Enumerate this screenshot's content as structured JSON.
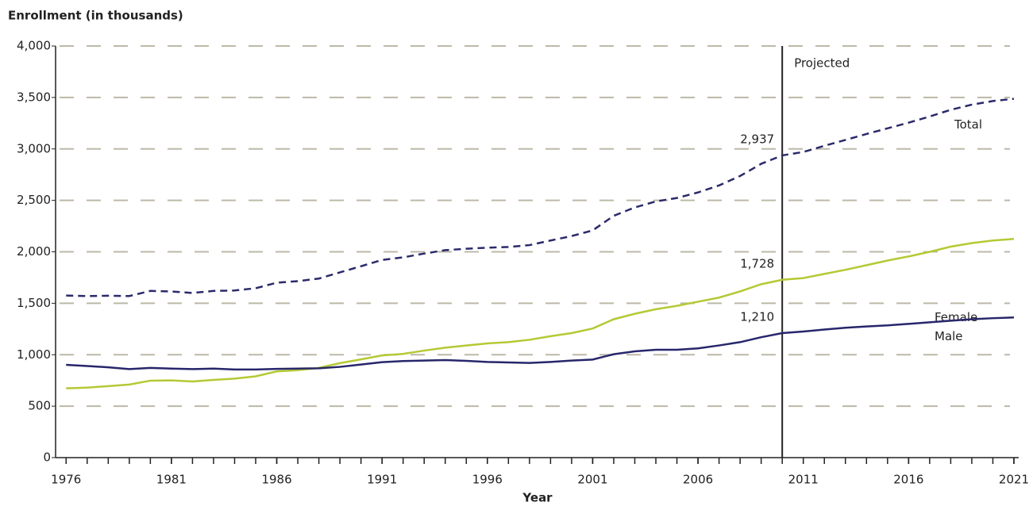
{
  "chart_data": {
    "type": "line",
    "y_axis_label": "Enrollment (in thousands)",
    "x_axis_label": "Year",
    "annotation": "Projected",
    "projection_start": 2010,
    "x": [
      1976,
      1977,
      1978,
      1979,
      1980,
      1981,
      1982,
      1983,
      1984,
      1985,
      1986,
      1987,
      1988,
      1989,
      1990,
      1991,
      1992,
      1993,
      1994,
      1995,
      1996,
      1997,
      1998,
      1999,
      2000,
      2001,
      2002,
      2003,
      2004,
      2005,
      2006,
      2007,
      2008,
      2009,
      2010,
      2011,
      2012,
      2013,
      2014,
      2015,
      2016,
      2017,
      2018,
      2019,
      2020,
      2021
    ],
    "series": [
      {
        "name": "Total",
        "color": "#2b2a6b",
        "dashed": true,
        "values": [
          1575,
          1570,
          1573,
          1570,
          1620,
          1615,
          1600,
          1620,
          1624,
          1646,
          1700,
          1715,
          1740,
          1800,
          1860,
          1921,
          1946,
          1983,
          2016,
          2030,
          2040,
          2047,
          2065,
          2110,
          2153,
          2208,
          2350,
          2431,
          2490,
          2523,
          2577,
          2645,
          2737,
          2855,
          2937,
          2970,
          3030,
          3087,
          3145,
          3200,
          3255,
          3315,
          3380,
          3430,
          3465,
          3487
        ],
        "value_labels": [
          null,
          null,
          null,
          null,
          null,
          null,
          null,
          null,
          null,
          null,
          null,
          null,
          null,
          null,
          null,
          null,
          null,
          null,
          null,
          null,
          null,
          null,
          null,
          null,
          null,
          null,
          null,
          null,
          null,
          null,
          null,
          null,
          null,
          null,
          "2,937",
          null,
          null,
          null,
          null,
          null,
          null,
          null,
          null,
          null,
          null,
          null
        ]
      },
      {
        "name": "Female",
        "color": "#b5c934",
        "dashed": false,
        "values": [
          673,
          680,
          695,
          710,
          748,
          750,
          740,
          755,
          768,
          790,
          838,
          850,
          872,
          918,
          955,
          993,
          1008,
          1040,
          1068,
          1090,
          1110,
          1122,
          1145,
          1180,
          1210,
          1255,
          1345,
          1398,
          1442,
          1475,
          1515,
          1555,
          1615,
          1685,
          1728,
          1745,
          1785,
          1825,
          1870,
          1915,
          1955,
          2000,
          2050,
          2085,
          2110,
          2125
        ],
        "value_labels": [
          null,
          null,
          null,
          null,
          null,
          null,
          null,
          null,
          null,
          null,
          null,
          null,
          null,
          null,
          null,
          null,
          null,
          null,
          null,
          null,
          null,
          null,
          null,
          null,
          null,
          null,
          null,
          null,
          null,
          null,
          null,
          null,
          null,
          null,
          "1,728",
          null,
          null,
          null,
          null,
          null,
          null,
          null,
          null,
          null,
          null,
          null
        ]
      },
      {
        "name": "Male",
        "color": "#27266b",
        "dashed": false,
        "values": [
          902,
          890,
          878,
          860,
          872,
          865,
          860,
          865,
          856,
          856,
          862,
          865,
          868,
          882,
          905,
          928,
          938,
          943,
          948,
          940,
          930,
          925,
          920,
          930,
          943,
          953,
          1005,
          1033,
          1048,
          1048,
          1062,
          1090,
          1122,
          1170,
          1210,
          1225,
          1245,
          1262,
          1275,
          1285,
          1300,
          1315,
          1330,
          1345,
          1355,
          1362
        ],
        "value_labels": [
          null,
          null,
          null,
          null,
          null,
          null,
          null,
          null,
          null,
          null,
          null,
          null,
          null,
          null,
          null,
          null,
          null,
          null,
          null,
          null,
          null,
          null,
          null,
          null,
          null,
          null,
          null,
          null,
          null,
          null,
          null,
          null,
          null,
          null,
          "1,210",
          null,
          null,
          null,
          null,
          null,
          null,
          null,
          null,
          null,
          null,
          null
        ]
      }
    ],
    "xlim": [
      1975.5,
      2021
    ],
    "xticks": [
      1976,
      1981,
      1986,
      1991,
      1996,
      2001,
      2006,
      2011,
      2016,
      2021
    ],
    "ylim": [
      0,
      4000
    ],
    "yticks": [
      0,
      500,
      {
        "value": 1000,
        "label": "1,000"
      },
      {
        "value": 1500,
        "label": "1,500"
      },
      {
        "value": 2000,
        "label": "2,000"
      },
      {
        "value": 2500,
        "label": "2,500"
      },
      {
        "value": 3000,
        "label": "3,000"
      },
      {
        "value": 3500,
        "label": "3,500"
      },
      {
        "value": 4000,
        "label": "4,000"
      }
    ],
    "grid": true
  }
}
